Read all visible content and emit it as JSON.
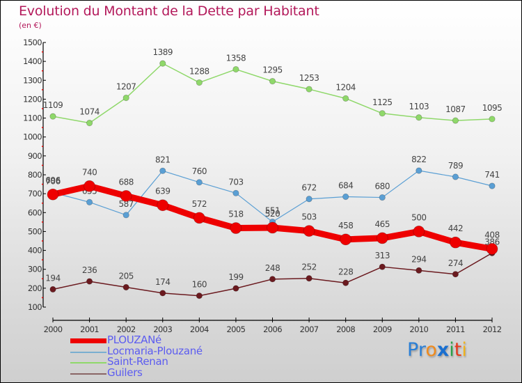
{
  "chart_data": {
    "type": "line",
    "title": "Evolution du Montant de la Dette par Habitant",
    "subtitle": "(en €)",
    "xlabel": "",
    "ylabel": "",
    "x": [
      "2000",
      "2001",
      "2002",
      "2003",
      "2004",
      "2005",
      "2006",
      "2007",
      "2008",
      "2009",
      "2010",
      "2011",
      "2012"
    ],
    "ylim": [
      100,
      1500
    ],
    "yticks": [
      100,
      200,
      300,
      400,
      500,
      600,
      700,
      800,
      900,
      1000,
      1100,
      1200,
      1300,
      1400,
      1500
    ],
    "grid": false,
    "legend_position": "bottom-left",
    "series": [
      {
        "name": "Guilers",
        "color": "#6b1a1f",
        "values": [
          194,
          236,
          205,
          174,
          160,
          199,
          248,
          252,
          228,
          313,
          294,
          274,
          386
        ]
      },
      {
        "name": "Saint-Renan",
        "color": "#8fd86a",
        "values": [
          1109,
          1074,
          1207,
          1389,
          1288,
          1358,
          1295,
          1253,
          1204,
          1125,
          1103,
          1087,
          1095
        ]
      },
      {
        "name": "Locmaria-Plouzané",
        "color": "#5a9fd4",
        "values": [
          706,
          655,
          587,
          821,
          760,
          703,
          551,
          672,
          684,
          680,
          822,
          789,
          741
        ]
      },
      {
        "name": "PLOUZANé",
        "color": "#ee0000",
        "values": [
          696,
          740,
          688,
          639,
          572,
          518,
          520,
          503,
          458,
          465,
          500,
          442,
          408
        ]
      }
    ]
  },
  "legend": [
    {
      "label": "PLOUZANé",
      "color": "#ee0000"
    },
    {
      "label": "Locmaria-Plouzané",
      "color": "#7aaed0"
    },
    {
      "label": "Saint-Renan",
      "color": "#8fd86a"
    },
    {
      "label": "Guilers",
      "color": "#8a6565"
    }
  ],
  "logo": {
    "letters": [
      {
        "ch": "P",
        "color": "#2a7fd6"
      },
      {
        "ch": "r",
        "color": "#2a7fd6"
      },
      {
        "ch": "o",
        "color": "#f08a1c"
      },
      {
        "ch": "x",
        "color": "#1a6fd0"
      },
      {
        "ch": "i",
        "color": "#2aa046"
      },
      {
        "ch": "t",
        "color": "#e53a1c"
      },
      {
        "ch": "i",
        "color": "#f0b21c"
      }
    ]
  }
}
